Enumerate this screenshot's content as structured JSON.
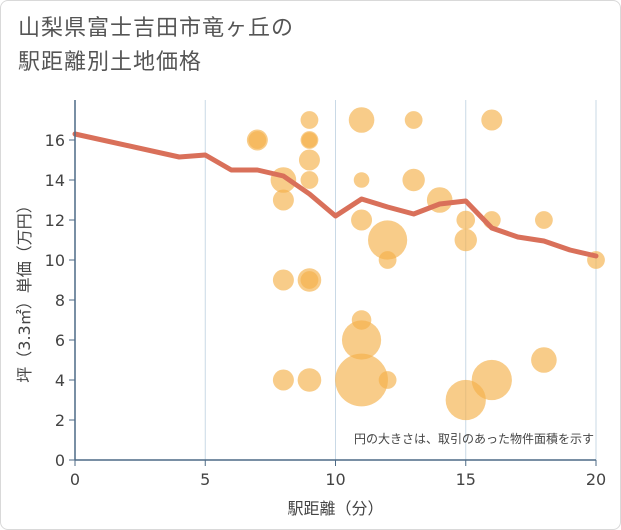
{
  "chart_data": {
    "type": "scatter",
    "title_lines": [
      "山梨県富士吉田市竜ヶ丘の",
      "駅距離別土地価格"
    ],
    "xlabel": "駅距離（分）",
    "ylabel": "坪（3.3㎡）単価（万円）",
    "xlim": [
      0,
      20
    ],
    "ylim": [
      0,
      18
    ],
    "x_ticks": [
      0,
      5,
      10,
      15,
      20
    ],
    "y_ticks": [
      0,
      2,
      4,
      6,
      8,
      10,
      12,
      14,
      16
    ],
    "note": "円の大きさは、取引のあった物件面積を示す",
    "colors": {
      "bubble": "#f5b04a",
      "line": "#d9705a",
      "grid": "#c9d9e6",
      "axis": "#4d6a85"
    },
    "bubbles": [
      {
        "x": 7,
        "y": 16,
        "size": 2
      },
      {
        "x": 7,
        "y": 16,
        "size": 1
      },
      {
        "x": 8,
        "y": 14,
        "size": 4
      },
      {
        "x": 8,
        "y": 13,
        "size": 2
      },
      {
        "x": 8,
        "y": 9,
        "size": 2
      },
      {
        "x": 8,
        "y": 4,
        "size": 2
      },
      {
        "x": 9,
        "y": 17,
        "size": 1
      },
      {
        "x": 9,
        "y": 16,
        "size": 1
      },
      {
        "x": 9,
        "y": 16,
        "size": 0.5
      },
      {
        "x": 9,
        "y": 15,
        "size": 2
      },
      {
        "x": 9,
        "y": 14,
        "size": 1
      },
      {
        "x": 9,
        "y": 9,
        "size": 3
      },
      {
        "x": 9,
        "y": 9,
        "size": 1
      },
      {
        "x": 9,
        "y": 4,
        "size": 3
      },
      {
        "x": 11,
        "y": 17,
        "size": 4
      },
      {
        "x": 11,
        "y": 14,
        "size": 0.5
      },
      {
        "x": 11,
        "y": 12,
        "size": 2
      },
      {
        "x": 11,
        "y": 7,
        "size": 1.5
      },
      {
        "x": 11,
        "y": 6,
        "size": 14
      },
      {
        "x": 11,
        "y": 4,
        "size": 30
      },
      {
        "x": 12,
        "y": 11,
        "size": 14
      },
      {
        "x": 12,
        "y": 10,
        "size": 1
      },
      {
        "x": 12,
        "y": 4,
        "size": 1
      },
      {
        "x": 13,
        "y": 17,
        "size": 1
      },
      {
        "x": 13,
        "y": 14,
        "size": 2.5
      },
      {
        "x": 14,
        "y": 13,
        "size": 4
      },
      {
        "x": 15,
        "y": 12,
        "size": 1.2
      },
      {
        "x": 15,
        "y": 11,
        "size": 2.5
      },
      {
        "x": 15,
        "y": 3,
        "size": 15
      },
      {
        "x": 16,
        "y": 17,
        "size": 2
      },
      {
        "x": 16,
        "y": 12,
        "size": 1
      },
      {
        "x": 16,
        "y": 4,
        "size": 15
      },
      {
        "x": 18,
        "y": 12,
        "size": 1
      },
      {
        "x": 18,
        "y": 5,
        "size": 4
      },
      {
        "x": 20,
        "y": 10,
        "size": 1
      }
    ],
    "trend": {
      "x": [
        0,
        4,
        5,
        6,
        7,
        8,
        9,
        10,
        11,
        12,
        13,
        14,
        15,
        16,
        17,
        18,
        19,
        20
      ],
      "y": [
        16.3,
        15.15,
        15.25,
        14.5,
        14.5,
        14.2,
        13.3,
        12.2,
        13.05,
        12.65,
        12.3,
        12.8,
        12.95,
        11.6,
        11.15,
        10.95,
        10.5,
        10.2
      ]
    }
  }
}
